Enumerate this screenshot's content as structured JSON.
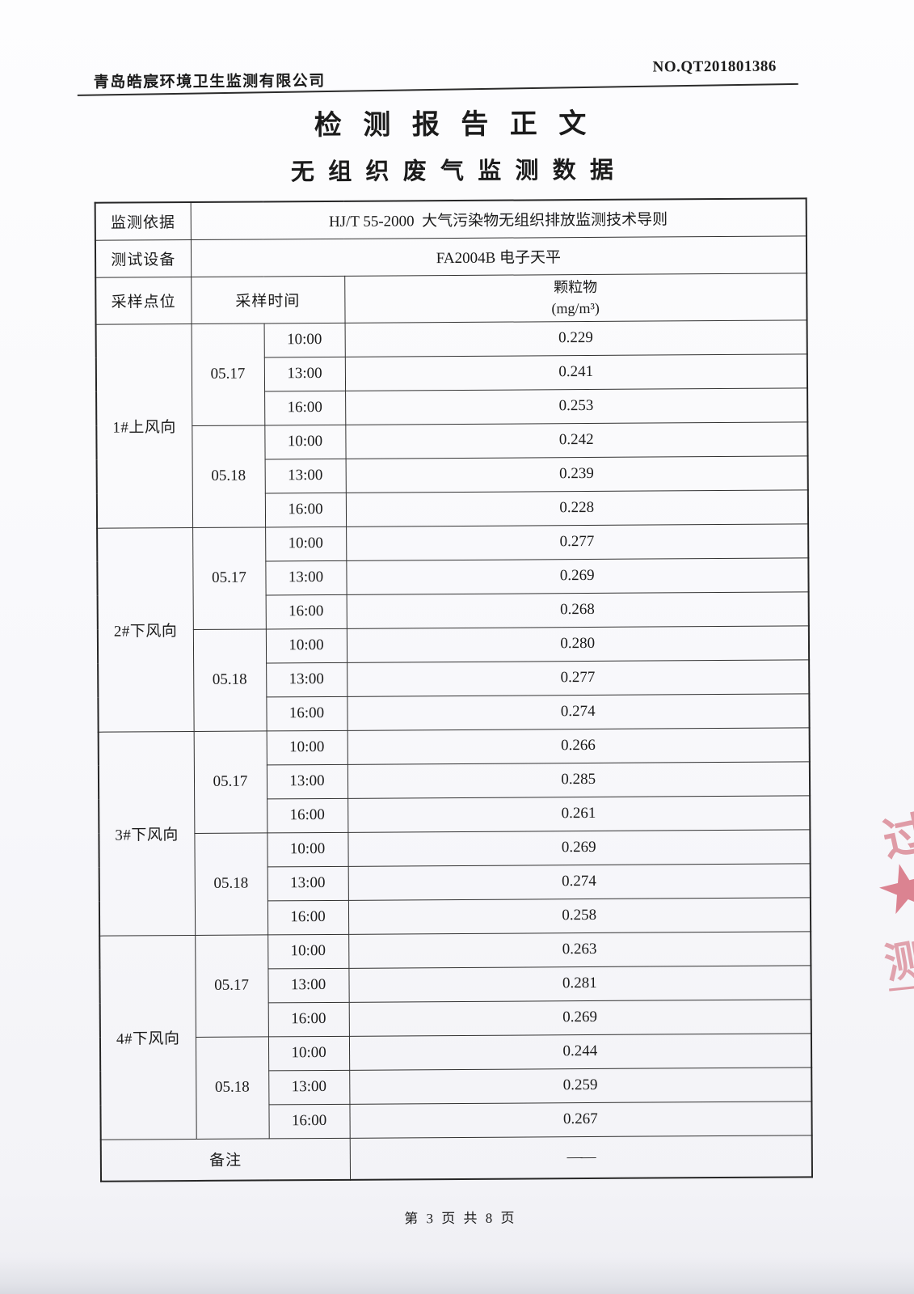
{
  "page": {
    "header": {
      "company": "青岛皓宸环境卫生监测有限公司",
      "report_no": "NO.QT201801386"
    },
    "title": "检 测 报 告 正 文",
    "subtitle": "无 组 织 废 气 监 测 数 据",
    "footer_page_text": "第 3 页 共 8 页"
  },
  "table": {
    "info_rows": [
      {
        "label": "监测依据",
        "value": "HJ/T 55-2000  大气污染物无组织排放监测技术导则"
      },
      {
        "label": "测试设备",
        "value": "FA2004B 电子天平"
      }
    ],
    "columns": {
      "point": "采样点位",
      "time": "采样时间",
      "analyte_line1": "颗粒物",
      "analyte_line2": "(mg/m³)"
    },
    "sections": [
      {
        "point": "1#上风向",
        "dates": [
          {
            "date": "05.17",
            "rows": [
              {
                "time": "10:00",
                "value": "0.229"
              },
              {
                "time": "13:00",
                "value": "0.241"
              },
              {
                "time": "16:00",
                "value": "0.253"
              }
            ]
          },
          {
            "date": "05.18",
            "rows": [
              {
                "time": "10:00",
                "value": "0.242"
              },
              {
                "time": "13:00",
                "value": "0.239"
              },
              {
                "time": "16:00",
                "value": "0.228"
              }
            ]
          }
        ]
      },
      {
        "point": "2#下风向",
        "dates": [
          {
            "date": "05.17",
            "rows": [
              {
                "time": "10:00",
                "value": "0.277"
              },
              {
                "time": "13:00",
                "value": "0.269"
              },
              {
                "time": "16:00",
                "value": "0.268"
              }
            ]
          },
          {
            "date": "05.18",
            "rows": [
              {
                "time": "10:00",
                "value": "0.280"
              },
              {
                "time": "13:00",
                "value": "0.277"
              },
              {
                "time": "16:00",
                "value": "0.274"
              }
            ]
          }
        ]
      },
      {
        "point": "3#下风向",
        "dates": [
          {
            "date": "05.17",
            "rows": [
              {
                "time": "10:00",
                "value": "0.266"
              },
              {
                "time": "13:00",
                "value": "0.285"
              },
              {
                "time": "16:00",
                "value": "0.261"
              }
            ]
          },
          {
            "date": "05.18",
            "rows": [
              {
                "time": "10:00",
                "value": "0.269"
              },
              {
                "time": "13:00",
                "value": "0.274"
              },
              {
                "time": "16:00",
                "value": "0.258"
              }
            ]
          }
        ]
      },
      {
        "point": "4#下风向",
        "dates": [
          {
            "date": "05.17",
            "rows": [
              {
                "time": "10:00",
                "value": "0.263"
              },
              {
                "time": "13:00",
                "value": "0.281"
              },
              {
                "time": "16:00",
                "value": "0.269"
              }
            ]
          },
          {
            "date": "05.18",
            "rows": [
              {
                "time": "10:00",
                "value": "0.244"
              },
              {
                "time": "13:00",
                "value": "0.259"
              },
              {
                "time": "16:00",
                "value": "0.267"
              }
            ]
          }
        ]
      }
    ],
    "remark": {
      "label": "备注",
      "value": "——"
    }
  },
  "stamp": {
    "color": "#c74052",
    "star_icon": "★",
    "fragment_top": "过",
    "fragment_bottom": "测",
    "fragment_dash": "—"
  }
}
